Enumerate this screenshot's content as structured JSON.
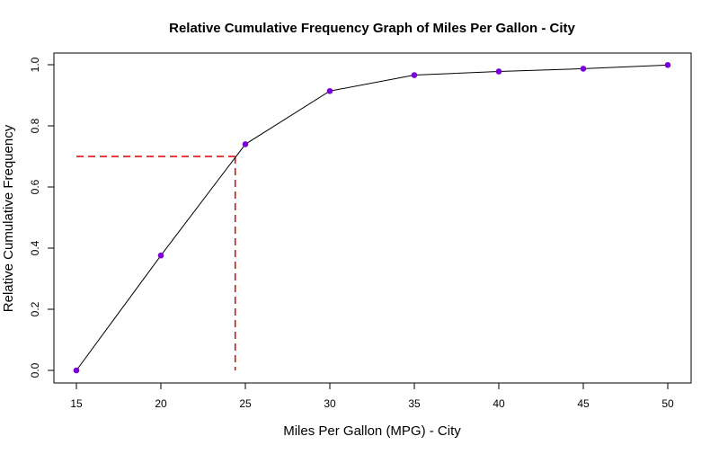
{
  "chart_data": {
    "type": "line",
    "title": "Relative Cumulative Frequency Graph of Miles Per Gallon - City",
    "xlabel": "Miles Per Gallon (MPG) - City",
    "ylabel": "Relative Cumulative Frequency",
    "x": [
      15,
      20,
      25,
      30,
      35,
      40,
      45,
      50
    ],
    "y": [
      0.0,
      0.376,
      0.74,
      0.914,
      0.966,
      0.978,
      0.987,
      0.999
    ],
    "xlim": [
      15,
      50
    ],
    "ylim": [
      0,
      1
    ],
    "x_ticks": [
      15,
      20,
      25,
      30,
      35,
      40,
      45,
      50
    ],
    "y_ticks": [
      "0.0",
      "0.2",
      "0.4",
      "0.6",
      "0.8",
      "1.0"
    ],
    "grid": false,
    "line_color": "#000000",
    "point_color": "#7b00d6",
    "reference_line": {
      "color": "#e00000",
      "y": 0.7,
      "x": 24.4,
      "style": "dashed"
    }
  }
}
